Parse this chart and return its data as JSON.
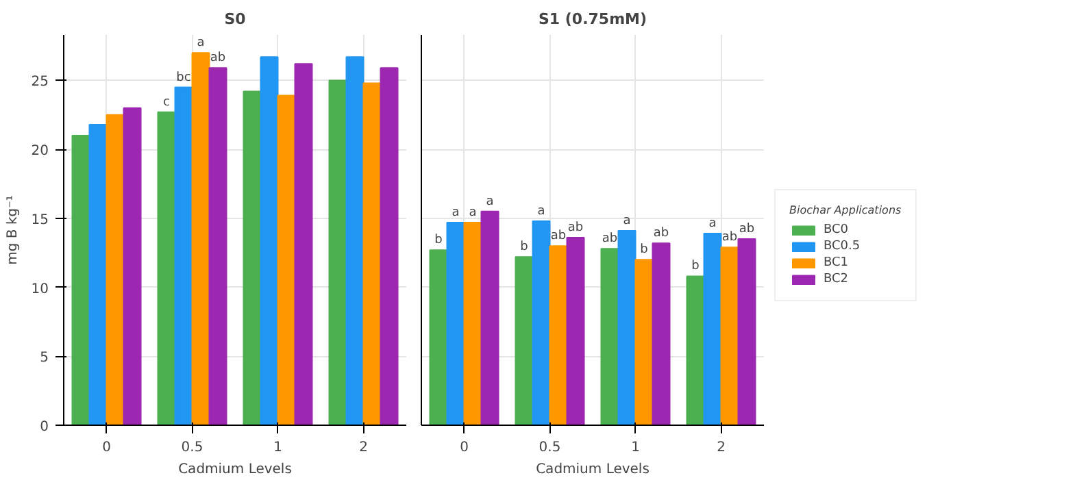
{
  "chart_data": [
    {
      "type": "bar",
      "title": "S0",
      "xlabel": "Cadmium Levels",
      "ylabel": "mg B kg⁻¹",
      "categories": [
        "0",
        "0.5",
        "1",
        "2"
      ],
      "ylim": [
        0,
        28.3
      ],
      "yticks": [
        0,
        5,
        10,
        15,
        20,
        25
      ],
      "grid": true,
      "series": [
        {
          "color": "#4caf50",
          "values": [
            21.0,
            22.7,
            24.2,
            25.0
          ],
          "value_labels": [
            null,
            "c",
            null,
            null
          ]
        },
        {
          "color": "#2196f3",
          "values": [
            21.8,
            24.5,
            26.7,
            26.7
          ],
          "value_labels": [
            null,
            "bc",
            null,
            null
          ]
        },
        {
          "color": "#ff9800",
          "values": [
            22.5,
            27.0,
            23.9,
            24.8
          ],
          "value_labels": [
            null,
            "a",
            null,
            null
          ]
        },
        {
          "color": "#9c27b0",
          "values": [
            23.0,
            25.9,
            26.2,
            25.9
          ],
          "value_labels": [
            null,
            "ab",
            null,
            null
          ]
        }
      ]
    },
    {
      "type": "bar",
      "title": "S1 (0.75mM)",
      "xlabel": "Cadmium Levels",
      "categories": [
        "0",
        "0.5",
        "1",
        "2"
      ],
      "ylim": [
        0,
        28.3
      ],
      "yticks": [
        0,
        5,
        10,
        15,
        20,
        25
      ],
      "tick_labels": "x",
      "grid": true,
      "legend": "right",
      "legend_title": "Biochar Applications",
      "series": [
        {
          "name": "BC0",
          "color": "#4caf50",
          "values": [
            12.7,
            12.2,
            12.8,
            10.8
          ],
          "value_labels": [
            "b",
            "b",
            "ab",
            "b"
          ]
        },
        {
          "name": "BC0.5",
          "color": "#2196f3",
          "values": [
            14.7,
            14.8,
            14.1,
            13.9
          ],
          "value_labels": [
            "a",
            "a",
            "a",
            "a"
          ]
        },
        {
          "name": "BC1",
          "color": "#ff9800",
          "values": [
            14.7,
            13.0,
            12.0,
            12.9
          ],
          "value_labels": [
            "a",
            "ab",
            "b",
            "ab"
          ]
        },
        {
          "name": "BC2",
          "color": "#9c27b0",
          "values": [
            15.5,
            13.6,
            13.2,
            13.5
          ],
          "value_labels": [
            "a",
            "ab",
            "ab",
            "ab"
          ]
        }
      ]
    }
  ]
}
